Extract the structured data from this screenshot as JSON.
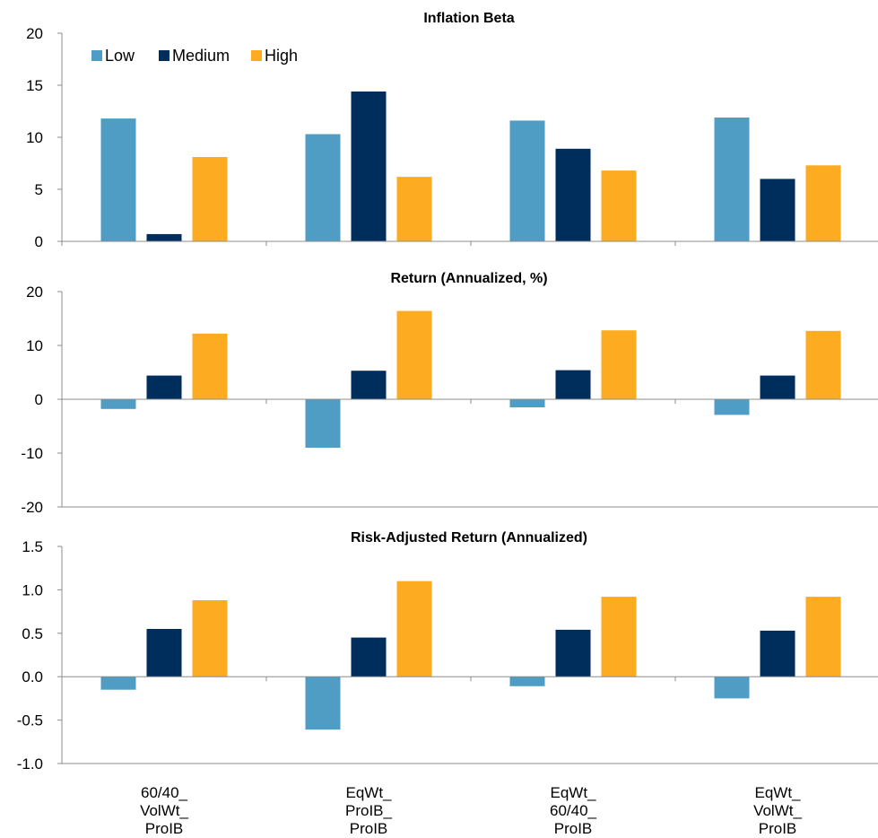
{
  "chart_data": [
    {
      "type": "bar",
      "title": "Inflation Beta",
      "categories": [
        "60/40_ VolWt_ ProIB",
        "EqWt_ ProIB_ ProIB",
        "EqWt_ 60/40_ ProIB",
        "EqWt_ VolWt_ ProIB"
      ],
      "series": [
        {
          "name": "Low",
          "color": "#4f9cc4",
          "values": [
            11.8,
            10.3,
            11.6,
            11.9
          ]
        },
        {
          "name": "Medium",
          "color": "#002e5c",
          "values": [
            0.7,
            14.4,
            8.9,
            6.0
          ]
        },
        {
          "name": "High",
          "color": "#fdab20",
          "values": [
            8.1,
            6.2,
            6.8,
            7.3
          ]
        }
      ],
      "ylim": [
        0,
        20
      ],
      "yticks": [
        "0",
        "5",
        "10",
        "15",
        "20"
      ],
      "grid": false,
      "legend": "top-left"
    },
    {
      "type": "bar",
      "title": "Return (Annualized, %)",
      "categories": [
        "60/40_ VolWt_ ProIB",
        "EqWt_ ProIB_ ProIB",
        "EqWt_ 60/40_ ProIB",
        "EqWt_ VolWt_ ProIB"
      ],
      "series": [
        {
          "name": "Low",
          "color": "#4f9cc4",
          "values": [
            -1.8,
            -9.0,
            -1.5,
            -2.9
          ]
        },
        {
          "name": "Medium",
          "color": "#002e5c",
          "values": [
            4.4,
            5.3,
            5.4,
            4.4
          ]
        },
        {
          "name": "High",
          "color": "#fdab20",
          "values": [
            12.2,
            16.4,
            12.8,
            12.7
          ]
        }
      ],
      "ylim": [
        -20,
        20
      ],
      "yticks": [
        "-20",
        "-10",
        "0",
        "10",
        "20"
      ],
      "grid": false
    },
    {
      "type": "bar",
      "title": "Risk-Adjusted Return (Annualized)",
      "categories": [
        "60/40_ VolWt_ ProIB",
        "EqWt_ ProIB_ ProIB",
        "EqWt_ 60/40_ ProIB",
        "EqWt_ VolWt_ ProIB"
      ],
      "series": [
        {
          "name": "Low",
          "color": "#4f9cc4",
          "values": [
            -0.15,
            -0.61,
            -0.11,
            -0.25
          ]
        },
        {
          "name": "Medium",
          "color": "#002e5c",
          "values": [
            0.55,
            0.45,
            0.54,
            0.53
          ]
        },
        {
          "name": "High",
          "color": "#fdab20",
          "values": [
            0.88,
            1.1,
            0.92,
            0.92
          ]
        }
      ],
      "ylim": [
        -1.0,
        1.5
      ],
      "yticks": [
        "-1.0",
        "-0.5",
        "0.0",
        "0.5",
        "1.0",
        "1.5"
      ],
      "grid": false
    }
  ],
  "x_category_lines": [
    [
      "60/40_",
      "VolWt_",
      "ProIB"
    ],
    [
      "EqWt_",
      "ProIB_",
      "ProIB"
    ],
    [
      "EqWt_",
      "60/40_",
      "ProIB"
    ],
    [
      "EqWt_",
      "VolWt_",
      "ProIB"
    ]
  ],
  "legend": {
    "items": [
      {
        "label": "Low",
        "color": "#4f9cc4"
      },
      {
        "label": "Medium",
        "color": "#002e5c"
      },
      {
        "label": "High",
        "color": "#fdab20"
      }
    ]
  }
}
